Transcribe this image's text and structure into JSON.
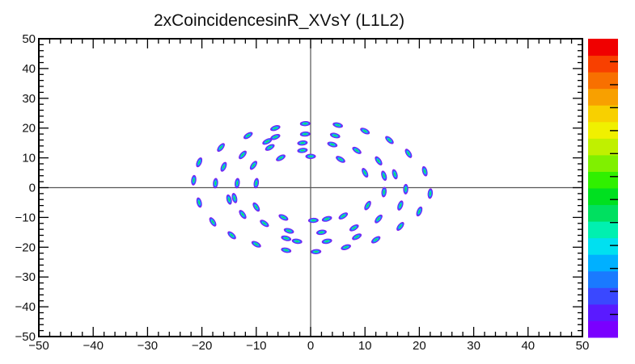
{
  "chart_data": {
    "type": "heatmap",
    "title": "2xCoincidencesinR_XVsY (L1L2)",
    "xlabel": "",
    "ylabel": "",
    "xlim": [
      -50,
      50
    ],
    "ylim": [
      -50,
      50
    ],
    "x_ticks": [
      -50,
      -40,
      -30,
      -20,
      -10,
      0,
      10,
      20,
      30,
      40,
      50
    ],
    "y_ticks": [
      -50,
      -40,
      -30,
      -20,
      -10,
      0,
      10,
      20,
      30,
      40,
      50
    ],
    "x_tick_labels": [
      "−50",
      "−40",
      "−30",
      "−20",
      "−10",
      "0",
      "10",
      "20",
      "30",
      "40",
      "50"
    ],
    "y_tick_labels": [
      "−50",
      "−40",
      "−30",
      "−20",
      "−10",
      "0",
      "10",
      "20",
      "30",
      "40",
      "50"
    ],
    "grid": false,
    "axis_lines_at_zero": true,
    "colorbar": true,
    "colorbar_position": "right",
    "colorbar_colors": [
      "#7a00ff",
      "#5a1aff",
      "#3a48ff",
      "#1a7aff",
      "#00b0ff",
      "#00e0f0",
      "#00f0b0",
      "#00e060",
      "#00e020",
      "#30f000",
      "#80f000",
      "#c0f000",
      "#f0f000",
      "#f8d000",
      "#f8a000",
      "#f87000",
      "#f84000",
      "#f00000"
    ],
    "clusters": [
      {
        "x": -21.5,
        "y": 2.5
      },
      {
        "x": -20.5,
        "y": 8.5
      },
      {
        "x": -16.5,
        "y": 13.5
      },
      {
        "x": -11.5,
        "y": 17.5
      },
      {
        "x": -6.5,
        "y": 20
      },
      {
        "x": -1,
        "y": 21.5
      },
      {
        "x": 5,
        "y": 21
      },
      {
        "x": 10,
        "y": 19
      },
      {
        "x": 14.5,
        "y": 16
      },
      {
        "x": 18,
        "y": 11.5
      },
      {
        "x": 21,
        "y": 5.5
      },
      {
        "x": 22,
        "y": -2
      },
      {
        "x": 20,
        "y": -8
      },
      {
        "x": 16.5,
        "y": -13
      },
      {
        "x": 12,
        "y": -17.5
      },
      {
        "x": 6.5,
        "y": -20
      },
      {
        "x": 1,
        "y": -21.5
      },
      {
        "x": -4.5,
        "y": -21
      },
      {
        "x": -10,
        "y": -19
      },
      {
        "x": -14.5,
        "y": -16
      },
      {
        "x": -18,
        "y": -11.5
      },
      {
        "x": -20.5,
        "y": -5
      },
      {
        "x": -17.5,
        "y": 1.5
      },
      {
        "x": -16,
        "y": 7
      },
      {
        "x": -12.5,
        "y": 11
      },
      {
        "x": -7.5,
        "y": 13.5
      },
      {
        "x": -1.5,
        "y": 15
      },
      {
        "x": 4,
        "y": 14.5
      },
      {
        "x": 8.5,
        "y": 12.5
      },
      {
        "x": 12.5,
        "y": 9
      },
      {
        "x": 15.5,
        "y": 4.5
      },
      {
        "x": 17.5,
        "y": -0.5
      },
      {
        "x": 16.5,
        "y": -6
      },
      {
        "x": 12.5,
        "y": -10.5
      },
      {
        "x": 8,
        "y": -13.5
      },
      {
        "x": 2,
        "y": -15
      },
      {
        "x": -4,
        "y": -14.5
      },
      {
        "x": -8.5,
        "y": -12
      },
      {
        "x": -12.5,
        "y": -9
      },
      {
        "x": -15,
        "y": -4
      },
      {
        "x": -13.5,
        "y": 1.5
      },
      {
        "x": -10.5,
        "y": 7.5
      },
      {
        "x": -5.5,
        "y": 10
      },
      {
        "x": 0,
        "y": 10.5
      },
      {
        "x": 5.5,
        "y": 9.5
      },
      {
        "x": 10,
        "y": 5
      },
      {
        "x": 13.5,
        "y": -1.5
      },
      {
        "x": 10.5,
        "y": -6
      },
      {
        "x": 6,
        "y": -9.5
      },
      {
        "x": 0.5,
        "y": -11
      },
      {
        "x": -5,
        "y": -10
      },
      {
        "x": -10,
        "y": -6.5
      },
      {
        "x": -14,
        "y": -3.5
      },
      {
        "x": -10,
        "y": 1.5
      },
      {
        "x": 3,
        "y": -10.5
      },
      {
        "x": -6.5,
        "y": 17
      },
      {
        "x": -1,
        "y": 18
      },
      {
        "x": 4.5,
        "y": 17.5
      },
      {
        "x": 8.5,
        "y": -16.5
      },
      {
        "x": 3,
        "y": -18
      },
      {
        "x": -2.5,
        "y": -18
      },
      {
        "x": -8,
        "y": 15.5
      },
      {
        "x": 13.5,
        "y": 4
      },
      {
        "x": -1.5,
        "y": 12.5
      },
      {
        "x": -4.5,
        "y": -17
      }
    ]
  }
}
